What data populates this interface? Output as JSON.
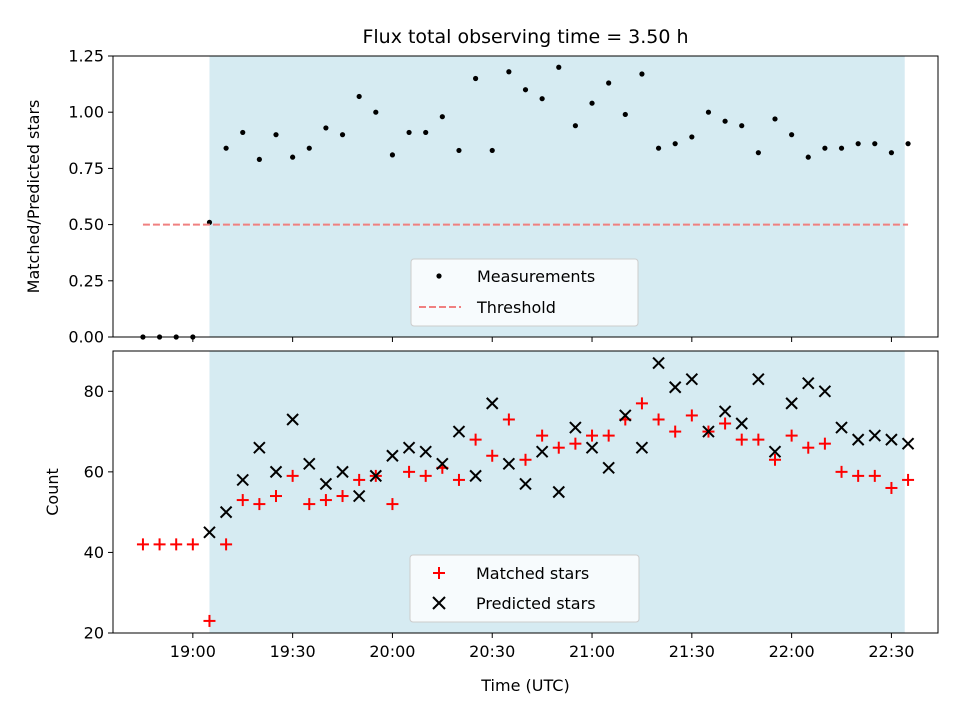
{
  "chart_data": [
    {
      "type": "scatter",
      "title": "Flux total observing time = 3.50 h",
      "ylabel": "Matched/Predicted stars",
      "xlim": [
        "18:36",
        "22:44"
      ],
      "ylim": [
        0,
        1.25
      ],
      "yticks": [
        0.0,
        0.25,
        0.5,
        0.75,
        1.0,
        1.25
      ],
      "ytick_labels": [
        "0.00",
        "0.25",
        "0.50",
        "0.75",
        "1.00",
        "1.25"
      ],
      "shaded_region": {
        "from": "19:05",
        "to": "22:34",
        "color": "#add8e6"
      },
      "legend": {
        "placement": "lower-center",
        "entries": [
          "Measurements",
          "Threshold"
        ]
      },
      "series": [
        {
          "name": "Measurements",
          "color": "#000000",
          "marker": "dot",
          "x": [
            "18:45",
            "18:50",
            "18:55",
            "19:00",
            "19:05",
            "19:10",
            "19:15",
            "19:20",
            "19:25",
            "19:30",
            "19:35",
            "19:40",
            "19:45",
            "19:50",
            "19:55",
            "20:00",
            "20:05",
            "20:10",
            "20:15",
            "20:20",
            "20:25",
            "20:30",
            "20:35",
            "20:40",
            "20:45",
            "20:50",
            "20:55",
            "21:00",
            "21:05",
            "21:10",
            "21:15",
            "21:20",
            "21:25",
            "21:30",
            "21:35",
            "21:40",
            "21:45",
            "21:50",
            "21:55",
            "22:00",
            "22:05",
            "22:10",
            "22:15",
            "22:20",
            "22:25",
            "22:30",
            "22:35"
          ],
          "y": [
            0.0,
            0.0,
            0.0,
            0.0,
            0.51,
            0.84,
            0.91,
            0.79,
            0.9,
            0.8,
            0.84,
            0.93,
            0.9,
            1.07,
            1.0,
            0.81,
            0.91,
            0.91,
            0.98,
            0.83,
            1.15,
            0.83,
            1.18,
            1.1,
            1.06,
            1.2,
            0.94,
            1.04,
            1.13,
            0.99,
            1.17,
            0.84,
            0.86,
            0.89,
            1.0,
            0.96,
            0.94,
            0.82,
            0.97,
            0.9,
            0.8,
            0.84,
            0.84,
            0.86,
            0.86,
            0.82,
            0.86
          ]
        },
        {
          "name": "Threshold",
          "color": "#f08080",
          "style": "dashed",
          "x": [
            "18:45",
            "22:35"
          ],
          "y": [
            0.5,
            0.5
          ]
        }
      ]
    },
    {
      "type": "scatter",
      "xlabel": "Time (UTC)",
      "ylabel": "Count",
      "xlim": [
        "18:36",
        "22:44"
      ],
      "ylim": [
        20,
        90
      ],
      "yticks": [
        20,
        40,
        60,
        80
      ],
      "xtick_labels": [
        "19:00",
        "19:30",
        "20:00",
        "20:30",
        "21:00",
        "21:30",
        "22:00",
        "22:30"
      ],
      "shaded_region": {
        "from": "19:05",
        "to": "22:34",
        "color": "#add8e6"
      },
      "legend": {
        "placement": "lower-center",
        "entries": [
          "Matched stars",
          "Predicted stars"
        ]
      },
      "series": [
        {
          "name": "Matched stars",
          "color": "#ff0000",
          "marker": "plus",
          "x": [
            "18:45",
            "18:50",
            "18:55",
            "19:00",
            "19:05",
            "19:10",
            "19:15",
            "19:20",
            "19:25",
            "19:30",
            "19:35",
            "19:40",
            "19:45",
            "19:50",
            "19:55",
            "20:00",
            "20:05",
            "20:10",
            "20:15",
            "20:20",
            "20:25",
            "20:30",
            "20:35",
            "20:40",
            "20:45",
            "20:50",
            "20:55",
            "21:00",
            "21:05",
            "21:10",
            "21:15",
            "21:20",
            "21:25",
            "21:30",
            "21:35",
            "21:40",
            "21:45",
            "21:50",
            "21:55",
            "22:00",
            "22:05",
            "22:10",
            "22:15",
            "22:20",
            "22:25",
            "22:30",
            "22:35"
          ],
          "y": [
            42,
            42,
            42,
            42,
            23,
            42,
            53,
            52,
            54,
            59,
            52,
            53,
            54,
            58,
            59,
            52,
            60,
            59,
            61,
            58,
            68,
            64,
            73,
            63,
            69,
            66,
            67,
            69,
            69,
            73,
            77,
            73,
            70,
            74,
            70,
            72,
            68,
            68,
            63,
            69,
            66,
            67,
            60,
            59,
            59,
            56,
            58
          ]
        },
        {
          "name": "Predicted stars",
          "color": "#000000",
          "marker": "x",
          "x": [
            "19:05",
            "19:10",
            "19:15",
            "19:20",
            "19:25",
            "19:30",
            "19:35",
            "19:40",
            "19:45",
            "19:50",
            "19:55",
            "20:00",
            "20:05",
            "20:10",
            "20:15",
            "20:20",
            "20:25",
            "20:30",
            "20:35",
            "20:40",
            "20:45",
            "20:50",
            "20:55",
            "21:00",
            "21:05",
            "21:10",
            "21:15",
            "21:20",
            "21:25",
            "21:30",
            "21:35",
            "21:40",
            "21:45",
            "21:50",
            "21:55",
            "22:00",
            "22:05",
            "22:10",
            "22:15",
            "22:20",
            "22:25",
            "22:30",
            "22:35"
          ],
          "y": [
            45,
            50,
            58,
            66,
            60,
            73,
            62,
            57,
            60,
            54,
            59,
            64,
            66,
            65,
            62,
            70,
            59,
            77,
            62,
            57,
            65,
            55,
            71,
            66,
            61,
            74,
            66,
            87,
            81,
            83,
            70,
            75,
            72,
            83,
            65,
            77,
            82,
            80,
            71,
            68,
            69,
            68,
            67
          ]
        }
      ]
    }
  ]
}
